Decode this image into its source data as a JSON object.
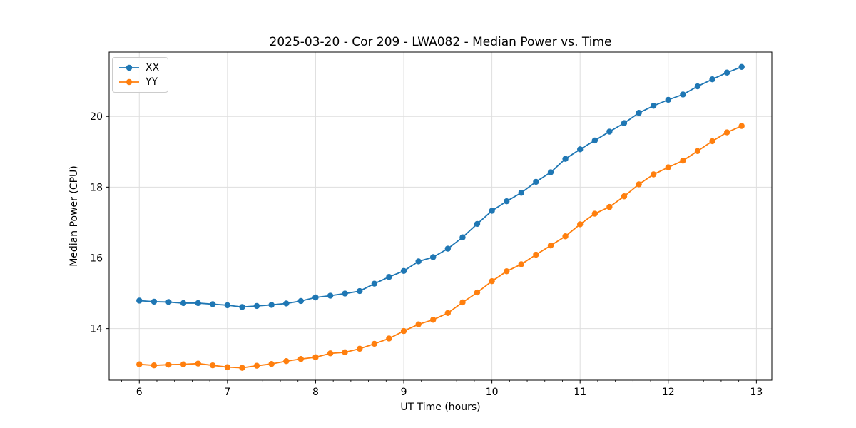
{
  "chart_data": {
    "type": "line",
    "title": "2025-03-20 - Cor 209 - LWA082 - Median Power vs. Time",
    "xlabel": "UT Time (hours)",
    "ylabel": "Median Power (CPU)",
    "x": [
      6.0,
      6.167,
      6.333,
      6.5,
      6.667,
      6.833,
      7.0,
      7.167,
      7.333,
      7.5,
      7.667,
      7.833,
      8.0,
      8.167,
      8.333,
      8.5,
      8.667,
      8.833,
      9.0,
      9.167,
      9.333,
      9.5,
      9.667,
      9.833,
      10.0,
      10.167,
      10.333,
      10.5,
      10.667,
      10.833,
      11.0,
      11.167,
      11.333,
      11.5,
      11.667,
      11.833,
      12.0,
      12.167,
      12.333,
      12.5,
      12.667,
      12.833
    ],
    "series": [
      {
        "name": "XX",
        "color": "#1f77b4",
        "marker": "circle",
        "values": [
          14.79,
          14.76,
          14.75,
          14.72,
          14.72,
          14.69,
          14.66,
          14.61,
          14.64,
          14.67,
          14.71,
          14.78,
          14.88,
          14.93,
          14.99,
          15.06,
          15.27,
          15.46,
          15.63,
          15.9,
          16.02,
          16.26,
          16.58,
          16.96,
          17.33,
          17.6,
          17.84,
          18.15,
          18.42,
          18.8,
          19.07,
          19.32,
          19.57,
          19.81,
          20.1,
          20.3,
          20.47,
          20.62,
          20.85,
          21.05,
          21.24,
          21.4
        ]
      },
      {
        "name": "YY",
        "color": "#ff7f0e",
        "marker": "circle",
        "values": [
          12.99,
          12.96,
          12.98,
          12.99,
          13.01,
          12.96,
          12.91,
          12.89,
          12.95,
          13.0,
          13.08,
          13.14,
          13.19,
          13.3,
          13.33,
          13.43,
          13.57,
          13.72,
          13.93,
          14.12,
          14.25,
          14.44,
          14.74,
          15.02,
          15.34,
          15.62,
          15.82,
          16.09,
          16.35,
          16.61,
          16.95,
          17.25,
          17.44,
          17.74,
          18.08,
          18.36,
          18.56,
          18.75,
          19.02,
          19.3,
          19.55,
          19.73
        ]
      }
    ],
    "xlim": [
      5.658,
      13.175
    ],
    "ylim": [
      12.54,
      21.82
    ],
    "xticks": [
      6,
      7,
      8,
      9,
      10,
      11,
      12,
      13
    ],
    "yticks": [
      14,
      16,
      18,
      20
    ],
    "x_minor_tick_step": 0.2,
    "grid": true,
    "legend_position": "upper left",
    "colors": {
      "grid": "#dedede",
      "spine": "#000000",
      "background": "#ffffff"
    }
  }
}
